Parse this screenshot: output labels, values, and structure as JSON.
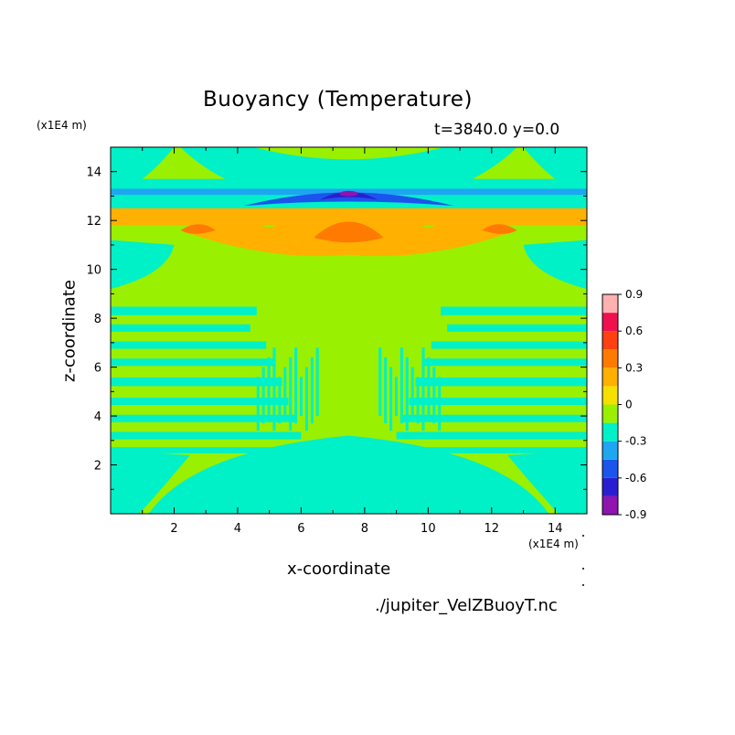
{
  "chart_data": {
    "type": "heatmap",
    "title": "Buoyancy (Temperature)",
    "subtitle": "t=3840.0 y=0.0",
    "xlabel": "x-coordinate",
    "ylabel": "z-coordinate",
    "x_unit": "(x1E4 m)",
    "y_unit": "(x1E4 m)",
    "xlim": [
      0,
      15
    ],
    "ylim": [
      0,
      15
    ],
    "x_ticks": [
      "2",
      "4",
      "6",
      "8",
      "10",
      "12",
      "14"
    ],
    "y_ticks": [
      "2",
      "4",
      "6",
      "8",
      "10",
      "12",
      "14"
    ],
    "x_tick_values": [
      2,
      4,
      6,
      8,
      10,
      12,
      14
    ],
    "y_tick_values": [
      2,
      4,
      6,
      8,
      10,
      12,
      14
    ],
    "colorbar": {
      "labels": [
        "0.9",
        "0.6",
        "0.3",
        "0",
        "-0.3",
        "-0.6",
        "-0.9"
      ],
      "label_values": [
        0.9,
        0.6,
        0.3,
        0,
        -0.3,
        -0.6,
        -0.9
      ],
      "range": [
        -0.9,
        0.9
      ],
      "levels": 12,
      "colors": [
        "#8f14b0",
        "#2a1fd0",
        "#1a55ec",
        "#1ea6f2",
        "#00f0c8",
        "#99f000",
        "#f5e000",
        "#ffb000",
        "#ff7a00",
        "#ff4010",
        "#f01050",
        "#ffb0b0"
      ]
    },
    "background_value_color": "#99f000",
    "regions": [
      {
        "name": "cool-lower-dome",
        "value": -0.15,
        "color": "#00f0c8"
      },
      {
        "name": "cool-upper-cap",
        "value": -0.15,
        "color": "#00f0c8"
      },
      {
        "name": "cold-core-z13",
        "value": -0.75,
        "color": "#2a1fd0"
      },
      {
        "name": "warm-band-z12",
        "value": 0.35,
        "color": "#ffb000"
      },
      {
        "name": "hot-core-z11.5",
        "value": 0.45,
        "color": "#ff7a00"
      },
      {
        "name": "striations-z3-9",
        "value": -0.15,
        "color": "#00f0c8"
      }
    ]
  },
  "footer": "./jupiter_VelZBuoyT.nc"
}
